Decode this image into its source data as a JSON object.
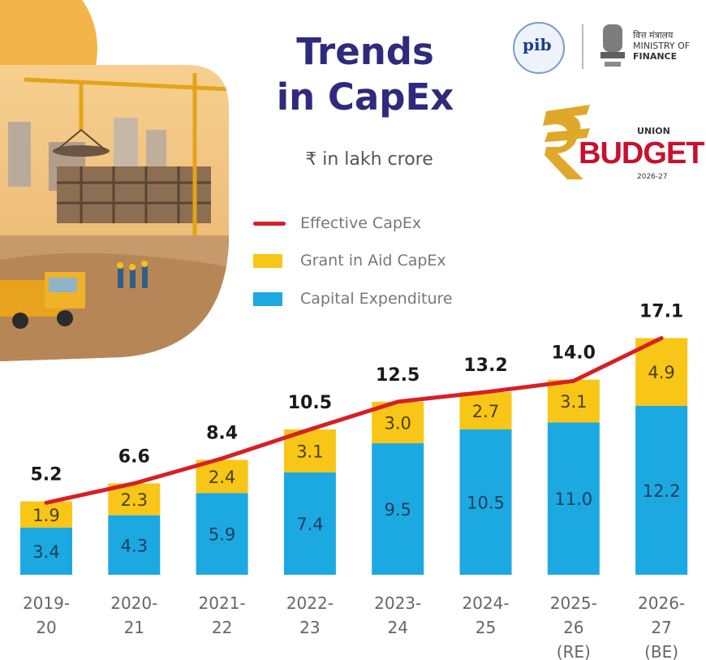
{
  "header": {
    "title_line1": "Trends",
    "title_line2": "in CapEx",
    "unit": "₹ in lakh crore"
  },
  "logos": {
    "pib_text": "pib",
    "ministry_line1": "वित्त मंत्रालय",
    "ministry_line2": "MINISTRY OF",
    "ministry_line3": "FINANCE",
    "budget_union": "UNION",
    "budget_word": "BUDGET",
    "budget_year": "2026-27"
  },
  "illustration": {
    "description_icon": "construction-site-icon"
  },
  "colors": {
    "title": "#2e2a7d",
    "effective_line": "#d71f26",
    "grant": "#f8c617",
    "capital": "#1ca9e1"
  },
  "chart_data": {
    "type": "bar",
    "stacked": true,
    "title": "Trends in CapEx",
    "ylabel": "₹ in lakh crore",
    "categories": [
      [
        "2019-",
        "20"
      ],
      [
        "2020-",
        "21"
      ],
      [
        "2021-",
        "22"
      ],
      [
        "2022-",
        "23"
      ],
      [
        "2023-",
        "24"
      ],
      [
        "2024-",
        "25"
      ],
      [
        "2025-",
        "26",
        "(RE)"
      ],
      [
        "2026-",
        "27",
        "(BE)"
      ]
    ],
    "series": [
      {
        "name": "Capital Expenditure",
        "type": "bar",
        "values": [
          3.4,
          4.3,
          5.9,
          7.4,
          9.5,
          10.5,
          11.0,
          12.2
        ],
        "labels": [
          "3.4",
          "4.3",
          "5.9",
          "7.4",
          "9.5",
          "10.5",
          "11.0",
          "12.2"
        ]
      },
      {
        "name": "Grant in Aid CapEx",
        "type": "bar",
        "values": [
          1.9,
          2.3,
          2.4,
          3.1,
          3.0,
          2.7,
          3.1,
          4.9
        ],
        "labels": [
          "1.9",
          "2.3",
          "2.4",
          "3.1",
          "3.0",
          "2.7",
          "3.1",
          "4.9"
        ]
      },
      {
        "name": "Effective CapEx",
        "type": "line",
        "values": [
          5.2,
          6.6,
          8.4,
          10.5,
          12.5,
          13.2,
          14.0,
          17.1
        ],
        "labels": [
          "5.2",
          "6.6",
          "8.4",
          "10.5",
          "12.5",
          "13.2",
          "14.0",
          "17.1"
        ]
      }
    ],
    "legend": [
      "Effective CapEx",
      "Grant in Aid CapEx",
      "Capital Expenditure"
    ],
    "legend_position": "top-right",
    "ylim": [
      0,
      18
    ]
  }
}
